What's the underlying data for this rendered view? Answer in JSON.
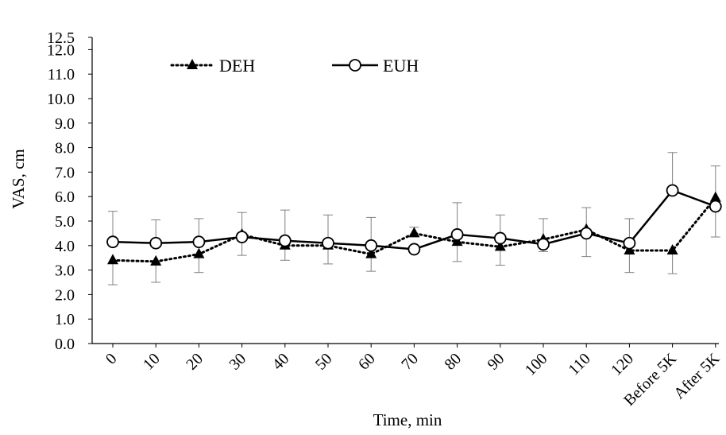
{
  "chart_data": {
    "type": "line",
    "title": "",
    "xlabel": "Time, min",
    "ylabel": "VAS, cm",
    "categories": [
      "0",
      "10",
      "20",
      "30",
      "40",
      "50",
      "60",
      "70",
      "80",
      "90",
      "100",
      "110",
      "120",
      "Before 5K",
      "After 5K"
    ],
    "y_ticks": [
      "0.0",
      "1.0",
      "2.0",
      "3.0",
      "4.0",
      "5.0",
      "6.0",
      "7.0",
      "8.0",
      "9.0",
      "10.0",
      "11.0",
      "12.0",
      "12.5"
    ],
    "ylim": [
      0,
      12.5
    ],
    "grid": false,
    "legend_placement": "top-left",
    "series": [
      {
        "name": "DEH",
        "line_style": "dotted",
        "marker": "filled-triangle",
        "color": "#000000",
        "values": [
          3.4,
          3.35,
          3.65,
          4.45,
          4.0,
          4.0,
          3.65,
          4.5,
          4.15,
          3.95,
          4.25,
          4.65,
          3.8,
          3.8,
          5.95
        ],
        "error_upper": [
          null,
          null,
          null,
          null,
          null,
          null,
          null,
          4.75,
          null,
          null,
          null,
          null,
          null,
          null,
          7.25
        ],
        "error_lower": [
          2.4,
          2.5,
          2.9,
          3.6,
          3.4,
          3.25,
          2.95,
          null,
          3.35,
          3.2,
          3.75,
          3.55,
          2.9,
          2.85,
          4.35
        ]
      },
      {
        "name": "EUH",
        "line_style": "solid",
        "marker": "open-circle",
        "color": "#000000",
        "values": [
          4.15,
          4.1,
          4.15,
          4.35,
          4.2,
          4.1,
          4.0,
          3.85,
          4.45,
          4.3,
          4.05,
          4.5,
          4.1,
          6.25,
          5.6
        ],
        "error_upper": [
          5.4,
          5.05,
          5.1,
          5.35,
          5.45,
          5.25,
          5.15,
          null,
          5.75,
          5.25,
          5.1,
          5.55,
          5.1,
          7.8,
          null
        ],
        "error_lower": [
          null,
          null,
          null,
          null,
          null,
          null,
          null,
          null,
          null,
          null,
          null,
          null,
          null,
          null,
          null
        ]
      }
    ]
  }
}
